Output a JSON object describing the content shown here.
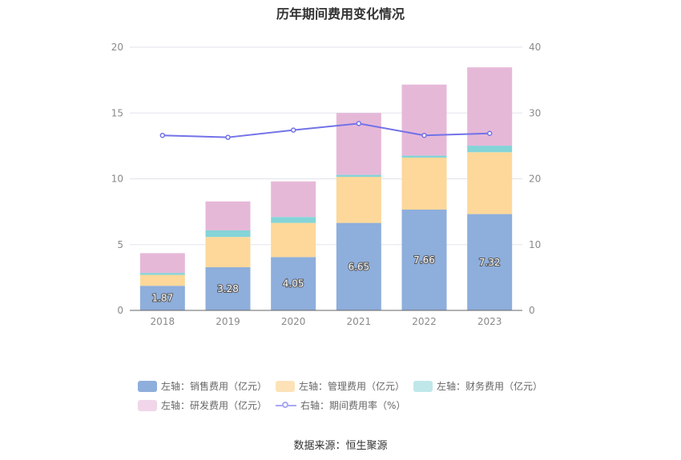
{
  "chart_data": {
    "type": "bar",
    "title": "历年期间费用变化情况",
    "categories": [
      "2018",
      "2019",
      "2020",
      "2021",
      "2022",
      "2023"
    ],
    "left_axis": {
      "ylim": [
        0,
        20
      ],
      "ticks": [
        "0",
        "5",
        "10",
        "15",
        "20"
      ]
    },
    "right_axis": {
      "ylim": [
        0,
        40
      ],
      "ticks": [
        "0",
        "10",
        "20",
        "30",
        "40"
      ]
    },
    "series": [
      {
        "name": "左轴：销售费用（亿元）",
        "axis": "left",
        "stack": true,
        "color": "#8eaedc",
        "values": [
          1.87,
          3.28,
          4.05,
          6.65,
          7.66,
          7.32
        ],
        "labels": [
          "1.87",
          "3.28",
          "4.05",
          "6.65",
          "7.66",
          "7.32"
        ]
      },
      {
        "name": "左轴：管理费用（亿元）",
        "axis": "left",
        "stack": true,
        "color": "#fdd89a",
        "values": [
          0.83,
          2.3,
          2.6,
          3.5,
          3.95,
          4.7
        ]
      },
      {
        "name": "左轴：财务费用（亿元）",
        "axis": "left",
        "stack": true,
        "color": "#84d4d8",
        "values": [
          0.15,
          0.5,
          0.45,
          0.15,
          0.15,
          0.5
        ]
      },
      {
        "name": "左轴：研发费用（亿元）",
        "axis": "left",
        "stack": true,
        "color": "#e6b8d8",
        "values": [
          1.5,
          2.2,
          2.7,
          4.7,
          5.4,
          5.95
        ]
      },
      {
        "name": "右轴：期间费用率（%）",
        "axis": "right",
        "type": "line",
        "color": "#7272e8",
        "values": [
          26.6,
          26.3,
          27.4,
          28.4,
          26.6,
          26.9
        ]
      }
    ]
  },
  "legend": {
    "items": [
      {
        "label": "左轴：销售费用（亿元）",
        "color": "#8eaedc"
      },
      {
        "label": "左轴：管理费用（亿元）",
        "color": "#fde2b8"
      },
      {
        "label": "左轴：财务费用（亿元）",
        "color": "#bfe7e9"
      },
      {
        "label": "左轴：研发费用（亿元）",
        "color": "#f1d6ea"
      },
      {
        "label": "右轴：期间费用率（%）",
        "color": "#a9a9f5"
      }
    ]
  },
  "source": "数据来源：恒生聚源"
}
